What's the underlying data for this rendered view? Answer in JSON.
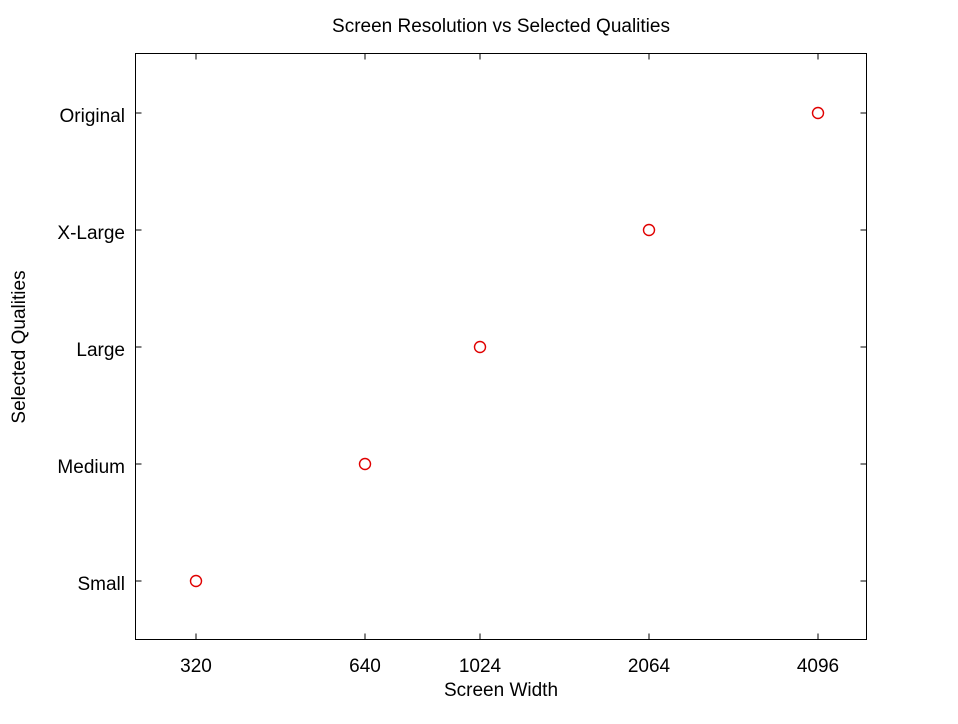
{
  "chart_data": {
    "type": "scatter",
    "title": "Screen Resolution vs Selected Qualities",
    "xlabel": "Screen Width",
    "ylabel": "Selected Qualities",
    "x_ticks": [
      "320",
      "640",
      "1024",
      "2064",
      "4096"
    ],
    "y_categories": [
      "Small",
      "Medium",
      "Large",
      "X-Large",
      "Original"
    ],
    "points": [
      {
        "x": "320",
        "y": "Small"
      },
      {
        "x": "640",
        "y": "Medium"
      },
      {
        "x": "1024",
        "y": "Large"
      },
      {
        "x": "2064",
        "y": "X-Large"
      },
      {
        "x": "4096",
        "y": "Original"
      }
    ],
    "marker": "open-circle",
    "marker_color": "#e00000",
    "grid": false,
    "legend": "none"
  }
}
